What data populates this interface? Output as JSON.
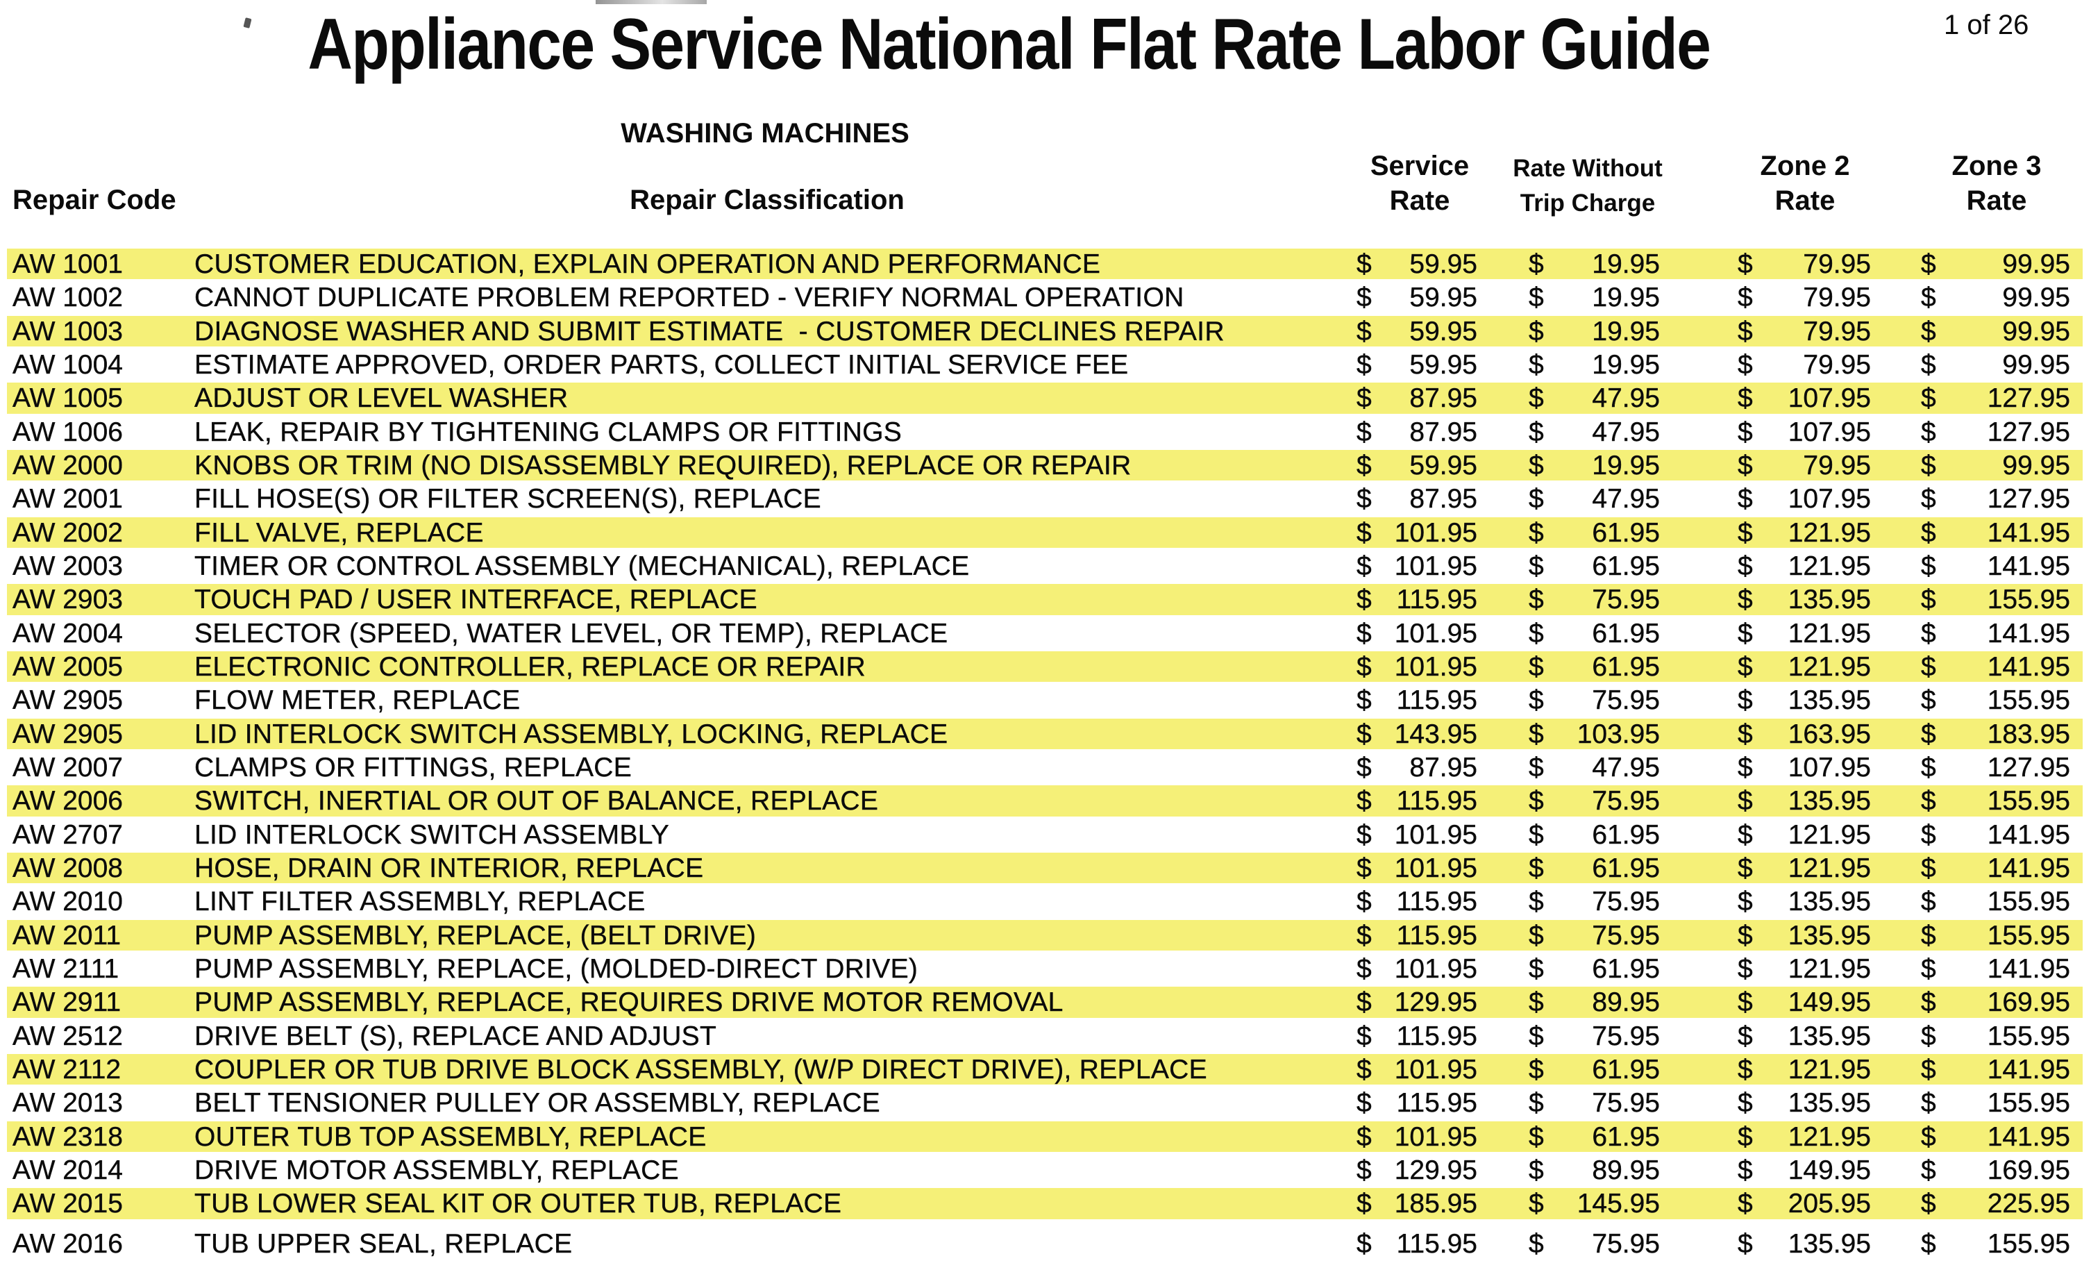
{
  "page": {
    "title": "Appliance Service National Flat Rate Labor Guide",
    "page_number": "1 of 26",
    "section_title": "WASHING MACHINES"
  },
  "colors": {
    "highlight_yellow": "#F5F078",
    "text": "#0B0B0B",
    "background": "#FFFFFF"
  },
  "table": {
    "currency_symbol": "$",
    "headers": {
      "repair_code": "Repair Code",
      "repair_classification": "Repair Classification",
      "service_rate": {
        "line1": "Service",
        "line2": "Rate"
      },
      "rate_without_trip": {
        "line1": "Rate Without",
        "line2": "Trip Charge"
      },
      "zone2": {
        "line1": "Zone 2",
        "line2": "Rate"
      },
      "zone3": {
        "line1": "Zone 3",
        "line2": "Rate"
      }
    },
    "rows": [
      {
        "code": "AW 1001",
        "classification": "CUSTOMER EDUCATION, EXPLAIN OPERATION AND PERFORMANCE",
        "service_rate": "59.95",
        "rate_without_trip": "19.95",
        "zone2_rate": "79.95",
        "zone3_rate": "99.95",
        "highlight": true
      },
      {
        "code": "AW 1002",
        "classification": "CANNOT DUPLICATE PROBLEM REPORTED - VERIFY NORMAL OPERATION",
        "service_rate": "59.95",
        "rate_without_trip": "19.95",
        "zone2_rate": "79.95",
        "zone3_rate": "99.95",
        "highlight": false
      },
      {
        "code": "AW 1003",
        "classification": "DIAGNOSE WASHER AND SUBMIT ESTIMATE  - CUSTOMER DECLINES REPAIR",
        "service_rate": "59.95",
        "rate_without_trip": "19.95",
        "zone2_rate": "79.95",
        "zone3_rate": "99.95",
        "highlight": true
      },
      {
        "code": "AW 1004",
        "classification": "ESTIMATE APPROVED, ORDER PARTS, COLLECT INITIAL SERVICE FEE",
        "service_rate": "59.95",
        "rate_without_trip": "19.95",
        "zone2_rate": "79.95",
        "zone3_rate": "99.95",
        "highlight": false
      },
      {
        "code": "AW 1005",
        "classification": "ADJUST OR LEVEL WASHER",
        "service_rate": "87.95",
        "rate_without_trip": "47.95",
        "zone2_rate": "107.95",
        "zone3_rate": "127.95",
        "highlight": true
      },
      {
        "code": "AW 1006",
        "classification": "LEAK, REPAIR BY TIGHTENING CLAMPS OR FITTINGS",
        "service_rate": "87.95",
        "rate_without_trip": "47.95",
        "zone2_rate": "107.95",
        "zone3_rate": "127.95",
        "highlight": false
      },
      {
        "code": "AW 2000",
        "classification": "KNOBS OR TRIM (NO DISASSEMBLY REQUIRED), REPLACE OR REPAIR",
        "service_rate": "59.95",
        "rate_without_trip": "19.95",
        "zone2_rate": "79.95",
        "zone3_rate": "99.95",
        "highlight": true
      },
      {
        "code": "AW 2001",
        "classification": "FILL HOSE(S) OR FILTER SCREEN(S), REPLACE",
        "service_rate": "87.95",
        "rate_without_trip": "47.95",
        "zone2_rate": "107.95",
        "zone3_rate": "127.95",
        "highlight": false
      },
      {
        "code": "AW 2002",
        "classification": "FILL VALVE, REPLACE",
        "service_rate": "101.95",
        "rate_without_trip": "61.95",
        "zone2_rate": "121.95",
        "zone3_rate": "141.95",
        "highlight": true
      },
      {
        "code": "AW 2003",
        "classification": "TIMER OR CONTROL ASSEMBLY (MECHANICAL), REPLACE",
        "service_rate": "101.95",
        "rate_without_trip": "61.95",
        "zone2_rate": "121.95",
        "zone3_rate": "141.95",
        "highlight": false
      },
      {
        "code": "AW 2903",
        "classification": "TOUCH PAD / USER INTERFACE, REPLACE",
        "service_rate": "115.95",
        "rate_without_trip": "75.95",
        "zone2_rate": "135.95",
        "zone3_rate": "155.95",
        "highlight": true
      },
      {
        "code": "AW 2004",
        "classification": "SELECTOR (SPEED, WATER LEVEL, OR TEMP), REPLACE",
        "service_rate": "101.95",
        "rate_without_trip": "61.95",
        "zone2_rate": "121.95",
        "zone3_rate": "141.95",
        "highlight": false
      },
      {
        "code": "AW 2005",
        "classification": "ELECTRONIC CONTROLLER, REPLACE OR REPAIR",
        "service_rate": "101.95",
        "rate_without_trip": "61.95",
        "zone2_rate": "121.95",
        "zone3_rate": "141.95",
        "highlight": true
      },
      {
        "code": "AW 2905",
        "classification": "FLOW METER, REPLACE",
        "service_rate": "115.95",
        "rate_without_trip": "75.95",
        "zone2_rate": "135.95",
        "zone3_rate": "155.95",
        "highlight": false
      },
      {
        "code": "AW 2905",
        "classification": "LID INTERLOCK SWITCH ASSEMBLY, LOCKING, REPLACE",
        "service_rate": "143.95",
        "rate_without_trip": "103.95",
        "zone2_rate": "163.95",
        "zone3_rate": "183.95",
        "highlight": true
      },
      {
        "code": "AW 2007",
        "classification": "CLAMPS OR FITTINGS, REPLACE",
        "service_rate": "87.95",
        "rate_without_trip": "47.95",
        "zone2_rate": "107.95",
        "zone3_rate": "127.95",
        "highlight": false
      },
      {
        "code": "AW 2006",
        "classification": "SWITCH, INERTIAL OR OUT OF BALANCE, REPLACE",
        "service_rate": "115.95",
        "rate_without_trip": "75.95",
        "zone2_rate": "135.95",
        "zone3_rate": "155.95",
        "highlight": true
      },
      {
        "code": "AW 2707",
        "classification": "LID INTERLOCK SWITCH ASSEMBLY",
        "service_rate": "101.95",
        "rate_without_trip": "61.95",
        "zone2_rate": "121.95",
        "zone3_rate": "141.95",
        "highlight": false
      },
      {
        "code": "AW 2008",
        "classification": "HOSE, DRAIN OR INTERIOR, REPLACE",
        "service_rate": "101.95",
        "rate_without_trip": "61.95",
        "zone2_rate": "121.95",
        "zone3_rate": "141.95",
        "highlight": true
      },
      {
        "code": "AW 2010",
        "classification": "LINT FILTER ASSEMBLY, REPLACE",
        "service_rate": "115.95",
        "rate_without_trip": "75.95",
        "zone2_rate": "135.95",
        "zone3_rate": "155.95",
        "highlight": false
      },
      {
        "code": "AW 2011",
        "classification": "PUMP ASSEMBLY, REPLACE, (BELT DRIVE)",
        "service_rate": "115.95",
        "rate_without_trip": "75.95",
        "zone2_rate": "135.95",
        "zone3_rate": "155.95",
        "highlight": true
      },
      {
        "code": "AW 2111",
        "classification": "PUMP ASSEMBLY, REPLACE, (MOLDED-DIRECT DRIVE)",
        "service_rate": "101.95",
        "rate_without_trip": "61.95",
        "zone2_rate": "121.95",
        "zone3_rate": "141.95",
        "highlight": false
      },
      {
        "code": "AW 2911",
        "classification": "PUMP ASSEMBLY, REPLACE, REQUIRES DRIVE MOTOR REMOVAL",
        "service_rate": "129.95",
        "rate_without_trip": "89.95",
        "zone2_rate": "149.95",
        "zone3_rate": "169.95",
        "highlight": true
      },
      {
        "code": "AW 2512",
        "classification": "DRIVE BELT (S), REPLACE AND ADJUST",
        "service_rate": "115.95",
        "rate_without_trip": "75.95",
        "zone2_rate": "135.95",
        "zone3_rate": "155.95",
        "highlight": false
      },
      {
        "code": "AW 2112",
        "classification": "COUPLER OR TUB DRIVE BLOCK ASSEMBLY, (W/P DIRECT DRIVE), REPLACE",
        "service_rate": "101.95",
        "rate_without_trip": "61.95",
        "zone2_rate": "121.95",
        "zone3_rate": "141.95",
        "highlight": true
      },
      {
        "code": "AW 2013",
        "classification": "BELT TENSIONER PULLEY OR ASSEMBLY, REPLACE",
        "service_rate": "115.95",
        "rate_without_trip": "75.95",
        "zone2_rate": "135.95",
        "zone3_rate": "155.95",
        "highlight": false
      },
      {
        "code": "AW 2318",
        "classification": "OUTER TUB TOP ASSEMBLY, REPLACE",
        "service_rate": "101.95",
        "rate_without_trip": "61.95",
        "zone2_rate": "121.95",
        "zone3_rate": "141.95",
        "highlight": true
      },
      {
        "code": "AW 2014",
        "classification": "DRIVE MOTOR ASSEMBLY, REPLACE",
        "service_rate": "129.95",
        "rate_without_trip": "89.95",
        "zone2_rate": "149.95",
        "zone3_rate": "169.95",
        "highlight": false
      },
      {
        "code": "AW 2015",
        "classification": "TUB LOWER SEAL KIT OR OUTER TUB, REPLACE",
        "service_rate": "185.95",
        "rate_without_trip": "145.95",
        "zone2_rate": "205.95",
        "zone3_rate": "225.95",
        "highlight": true
      },
      {
        "code": "AW 2016",
        "classification": "TUB UPPER SEAL, REPLACE",
        "service_rate": "115.95",
        "rate_without_trip": "75.95",
        "zone2_rate": "135.95",
        "zone3_rate": "155.95",
        "highlight": false
      }
    ]
  }
}
